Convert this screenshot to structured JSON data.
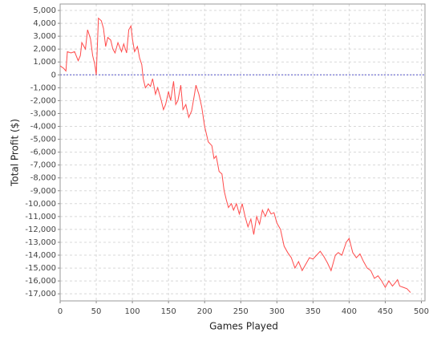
{
  "chart_data": {
    "type": "line",
    "xlabel": "Games Played",
    "ylabel": "Total Profit ($)",
    "x": [
      0,
      5,
      8,
      10,
      15,
      20,
      25,
      28,
      30,
      35,
      38,
      42,
      45,
      48,
      50,
      53,
      57,
      60,
      63,
      66,
      70,
      73,
      76,
      80,
      85,
      88,
      92,
      95,
      98,
      100,
      103,
      107,
      110,
      113,
      115,
      118,
      122,
      125,
      128,
      132,
      135,
      140,
      143,
      146,
      150,
      153,
      157,
      160,
      163,
      167,
      170,
      174,
      178,
      182,
      186,
      188,
      192,
      196,
      200,
      205,
      210,
      213,
      216,
      220,
      224,
      227,
      230,
      233,
      237,
      240,
      244,
      248,
      252,
      256,
      260,
      264,
      268,
      272,
      276,
      280,
      284,
      288,
      292,
      296,
      300,
      305,
      310,
      315,
      320,
      325,
      330,
      335,
      340,
      345,
      350,
      355,
      360,
      365,
      370,
      375,
      378,
      381,
      385,
      390,
      393,
      396,
      400,
      405,
      410,
      415,
      420,
      425,
      430,
      435,
      440,
      445,
      448,
      450,
      455,
      460,
      463,
      467,
      470,
      475,
      480,
      485
    ],
    "series": [
      {
        "color": "#ff4a4a",
        "values": [
          700,
          500,
          300,
          1800,
          1700,
          1800,
          1100,
          1500,
          2500,
          2000,
          3500,
          2800,
          1500,
          800,
          0,
          4400,
          4200,
          3600,
          2200,
          2900,
          2700,
          2000,
          1700,
          2500,
          1800,
          2400,
          1700,
          3500,
          3800,
          2800,
          1800,
          2200,
          1300,
          800,
          -300,
          -1000,
          -700,
          -900,
          -300,
          -1500,
          -1000,
          -2000,
          -2700,
          -2300,
          -1300,
          -2000,
          -500,
          -2300,
          -2000,
          -800,
          -2700,
          -2300,
          -3300,
          -2800,
          -1500,
          -800,
          -1500,
          -2500,
          -4000,
          -5200,
          -5500,
          -6500,
          -6300,
          -7500,
          -7700,
          -9000,
          -9700,
          -10300,
          -10000,
          -10500,
          -10000,
          -10800,
          -10000,
          -11000,
          -11800,
          -11200,
          -12400,
          -11000,
          -11600,
          -10500,
          -11000,
          -10400,
          -10800,
          -10700,
          -11500,
          -12000,
          -13300,
          -13800,
          -14200,
          -15000,
          -14500,
          -15200,
          -14700,
          -14200,
          -14300,
          -14000,
          -13700,
          -14100,
          -14600,
          -15200,
          -14600,
          -14000,
          -13800,
          -14000,
          -13500,
          -13000,
          -12700,
          -13800,
          -14200,
          -13900,
          -14500,
          -15000,
          -15200,
          -15800,
          -15600,
          -16000,
          -16300,
          -16500,
          -16000,
          -16400,
          -16200,
          -15900,
          -16400,
          -16500,
          -16600,
          -16900
        ]
      }
    ],
    "xlim": [
      0,
      505
    ],
    "ylim": [
      -17550,
      5500
    ],
    "xticks": [
      0,
      50,
      100,
      150,
      200,
      250,
      300,
      350,
      400,
      450,
      500
    ],
    "yticks": [
      {
        "value": 5000,
        "label": "5,000"
      },
      {
        "value": 4000,
        "label": "4,000"
      },
      {
        "value": 3000,
        "label": "3,000"
      },
      {
        "value": 2000,
        "label": "2,000"
      },
      {
        "value": 1000,
        "label": "1,000"
      },
      0,
      {
        "value": -1000,
        "label": "-1,000"
      },
      {
        "value": -2000,
        "label": "-2,000"
      },
      {
        "value": -3000,
        "label": "-3,000"
      },
      {
        "value": -4000,
        "label": "-4,000"
      },
      {
        "value": -5000,
        "label": "-5,000"
      },
      {
        "value": -6000,
        "label": "-6,000"
      },
      {
        "value": -7000,
        "label": "-7,000"
      },
      {
        "value": -8000,
        "label": "-8,000"
      },
      {
        "value": -9000,
        "label": "-9,000"
      },
      {
        "value": -10000,
        "label": "-10,000"
      },
      {
        "value": -11000,
        "label": "-11,000"
      },
      {
        "value": -12000,
        "label": "-12,000"
      },
      {
        "value": -13000,
        "label": "-13,000"
      },
      {
        "value": -14000,
        "label": "-14,000"
      },
      {
        "value": -15000,
        "label": "-15,000"
      },
      {
        "value": -16000,
        "label": "-16,000"
      },
      {
        "value": -17000,
        "label": "-17,000"
      }
    ],
    "grid": true,
    "zero_line_color": "#5555cc"
  }
}
